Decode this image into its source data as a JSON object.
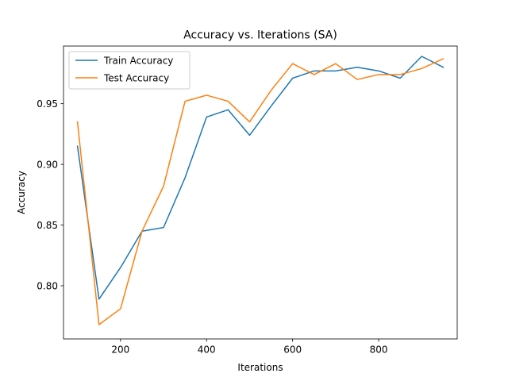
{
  "chart_data": {
    "type": "line",
    "title": "Accuracy vs. Iterations (SA)",
    "xlabel": "Iterations",
    "ylabel": "Accuracy",
    "xlim": [
      67.5,
      982.5
    ],
    "ylim": [
      0.7562,
      0.9975
    ],
    "xticks": [
      200,
      400,
      600,
      800
    ],
    "yticks": [
      0.8,
      0.85,
      0.9,
      0.95
    ],
    "ytick_labels": [
      "0.80",
      "0.85",
      "0.90",
      "0.95"
    ],
    "grid": false,
    "legend_position": "upper-left",
    "x": [
      100,
      150,
      200,
      250,
      300,
      350,
      400,
      450,
      500,
      550,
      600,
      650,
      700,
      750,
      800,
      850,
      900,
      950
    ],
    "series": [
      {
        "name": "Train Accuracy",
        "color": "#1f77b4",
        "values": [
          0.915,
          0.789,
          0.815,
          0.845,
          0.848,
          0.889,
          0.939,
          0.945,
          0.924,
          0.948,
          0.971,
          0.977,
          0.977,
          0.98,
          0.977,
          0.971,
          0.989,
          0.98
        ]
      },
      {
        "name": "Test Accuracy",
        "color": "#ff7f0e",
        "values": [
          0.935,
          0.768,
          0.781,
          0.845,
          0.882,
          0.952,
          0.957,
          0.952,
          0.935,
          0.961,
          0.983,
          0.974,
          0.983,
          0.97,
          0.974,
          0.974,
          0.979,
          0.987
        ]
      }
    ]
  }
}
